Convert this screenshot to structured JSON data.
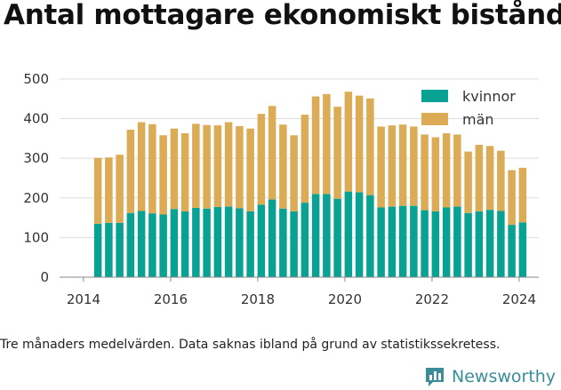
{
  "title": "Antal mottagare ekonomiskt bistånd",
  "footnote": "Tre månaders medelvärden. Data saknas ibland på grund av statistikssekretess.",
  "brand": {
    "name": "Newsworthy",
    "icon": "bar-chart-icon",
    "color": "#3a8d98"
  },
  "colors": {
    "kvinnor": "#08a192",
    "man": "#dbab55",
    "grid": "#dddddd",
    "axis": "#888888"
  },
  "chart_data": {
    "type": "bar",
    "stacked": true,
    "x_ticks": [
      2014,
      2016,
      2018,
      2020,
      2022,
      2024
    ],
    "y_ticks": [
      0,
      100,
      200,
      300,
      400,
      500
    ],
    "xlim": [
      2013.45,
      2024.45
    ],
    "ylim": [
      0,
      520
    ],
    "grid": true,
    "legend_position": "top-right",
    "x": [
      2014.33,
      2014.58,
      2014.83,
      2015.08,
      2015.33,
      2015.58,
      2015.83,
      2016.08,
      2016.33,
      2016.58,
      2016.83,
      2017.08,
      2017.33,
      2017.58,
      2017.83,
      2018.08,
      2018.33,
      2018.58,
      2018.83,
      2019.08,
      2019.33,
      2019.58,
      2019.83,
      2020.08,
      2020.33,
      2020.58,
      2020.83,
      2021.08,
      2021.33,
      2021.58,
      2021.83,
      2022.08,
      2022.33,
      2022.58,
      2022.83,
      2023.08,
      2023.33,
      2023.58,
      2023.83,
      2024.08
    ],
    "series": [
      {
        "name": "kvinnor",
        "values": [
          135,
          137,
          137,
          162,
          167,
          161,
          158,
          172,
          166,
          175,
          173,
          177,
          178,
          174,
          166,
          183,
          196,
          173,
          166,
          188,
          210,
          210,
          198,
          216,
          214,
          207,
          176,
          178,
          180,
          180,
          169,
          166,
          176,
          178,
          162,
          166,
          170,
          167,
          132,
          138
        ]
      },
      {
        "name": "män",
        "values": [
          166,
          165,
          172,
          210,
          224,
          225,
          200,
          203,
          197,
          212,
          211,
          206,
          213,
          207,
          209,
          229,
          236,
          212,
          192,
          222,
          246,
          252,
          232,
          252,
          244,
          244,
          204,
          205,
          205,
          200,
          191,
          187,
          187,
          182,
          155,
          168,
          161,
          152,
          138,
          138
        ]
      }
    ]
  }
}
